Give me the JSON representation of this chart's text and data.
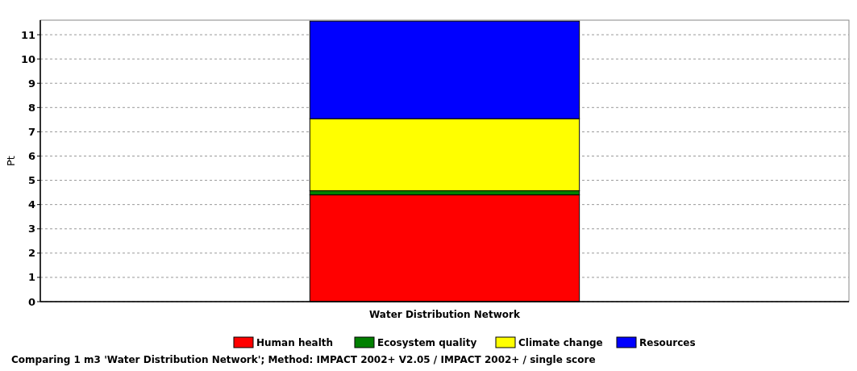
{
  "chart_data": {
    "type": "bar",
    "stacked": true,
    "ylabel": "Pt",
    "categories": [
      "Water Distribution Network"
    ],
    "series": [
      {
        "name": "Human health",
        "color": "#ff0000",
        "values": [
          4.4
        ]
      },
      {
        "name": "Ecosystem quality",
        "color": "#008000",
        "values": [
          0.17
        ]
      },
      {
        "name": "Climate change",
        "color": "#ffff00",
        "values": [
          2.97
        ]
      },
      {
        "name": "Resources",
        "color": "#0000ff",
        "values": [
          4.02
        ]
      }
    ],
    "ylim": [
      0,
      11.6
    ],
    "yticks": [
      0,
      1,
      2,
      3,
      4,
      5,
      6,
      7,
      8,
      9,
      10,
      11
    ],
    "grid": "y",
    "legend": "bottom",
    "annotations": [
      "Comparing 1 m3 'Water Distribution Network';  Method: IMPACT 2002+ V2.05 /  IMPACT 2002+ / single score"
    ]
  }
}
